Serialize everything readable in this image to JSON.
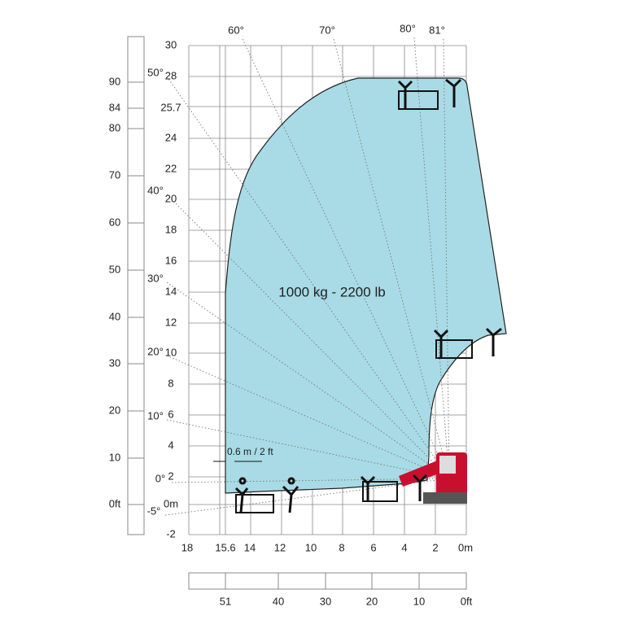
{
  "load_label": "1000 kg - 2200 lb",
  "clearance_note": "0.6 m / 2 ft",
  "height_axis_m": [
    "30",
    "28",
    "25.7",
    "24",
    "22",
    "20",
    "18",
    "16",
    "14",
    "12",
    "10",
    "8",
    "6",
    "4",
    "2",
    "0m",
    "-2"
  ],
  "reach_axis_m": [
    "18",
    "15.6",
    "14",
    "12",
    "10",
    "8",
    "6",
    "4",
    "2",
    "0m"
  ],
  "height_axis_ft": [
    "90",
    "84",
    "80",
    "70",
    "60",
    "50",
    "40",
    "30",
    "20",
    "10",
    "0ft"
  ],
  "reach_axis_ft": [
    "51",
    "40",
    "30",
    "20",
    "10",
    "0ft"
  ],
  "boom_angles": [
    "60°",
    "70°",
    "80°",
    "81°",
    "50°",
    "40°",
    "30°",
    "20°",
    "10°",
    "0°",
    "-5°"
  ]
}
